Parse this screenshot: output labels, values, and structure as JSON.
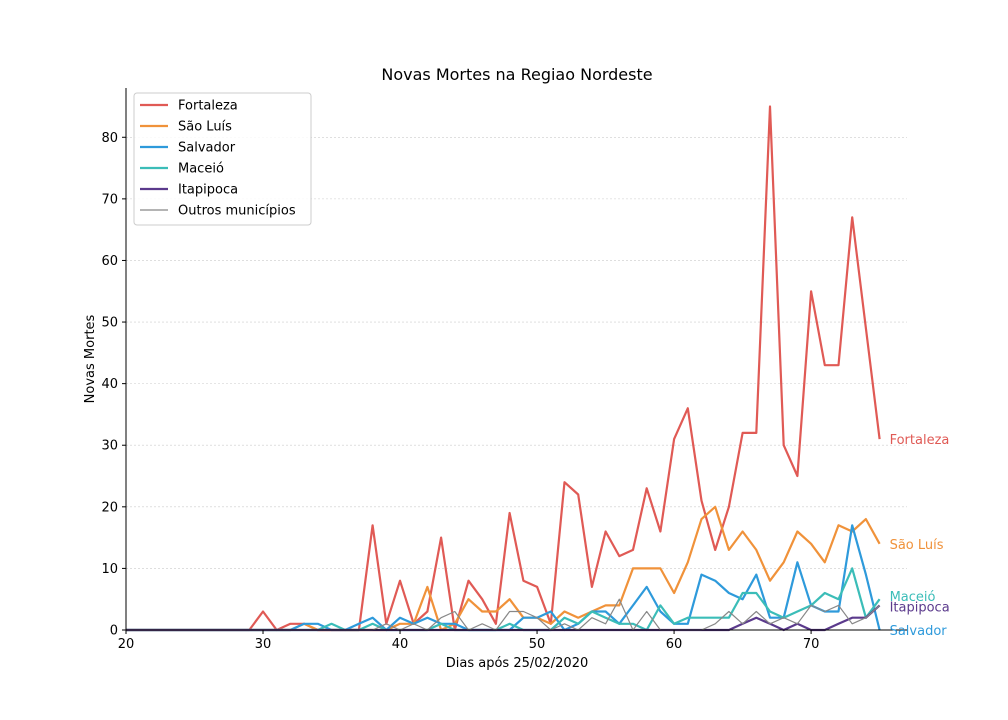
{
  "chart_data": {
    "type": "line",
    "title": "Novas Mortes na Regiao Nordeste",
    "xlabel": "Dias após 25/02/2020",
    "ylabel": "Novas Mortes",
    "xlim": [
      20,
      77
    ],
    "ylim": [
      0,
      88
    ],
    "xticks": [
      20,
      30,
      40,
      50,
      60,
      70
    ],
    "yticks": [
      0,
      10,
      20,
      30,
      40,
      50,
      60,
      70,
      80
    ],
    "grid": "horizontal-dashed",
    "legend_position": "top-left",
    "series": [
      {
        "name": "Fortaleza",
        "color": "#e05a55",
        "x": [
          20,
          21,
          22,
          23,
          24,
          25,
          26,
          27,
          28,
          29,
          30,
          31,
          32,
          33,
          34,
          35,
          36,
          37,
          38,
          39,
          40,
          41,
          42,
          43,
          44,
          45,
          46,
          47,
          48,
          49,
          50,
          51,
          52,
          53,
          54,
          55,
          56,
          57,
          58,
          59,
          60,
          61,
          62,
          63,
          64,
          65,
          66,
          67,
          68,
          69,
          70,
          71,
          72,
          73,
          74,
          75
        ],
        "y": [
          0,
          0,
          0,
          0,
          0,
          0,
          0,
          0,
          0,
          0,
          3,
          0,
          1,
          1,
          0,
          0,
          0,
          0,
          17,
          1,
          8,
          1,
          3,
          15,
          0,
          8,
          5,
          1,
          19,
          8,
          7,
          1,
          24,
          22,
          7,
          16,
          12,
          13,
          23,
          16,
          31,
          36,
          21,
          13,
          20,
          32,
          32,
          85,
          30,
          25,
          55,
          43,
          43,
          67,
          49,
          31
        ]
      },
      {
        "name": "São Luís",
        "color": "#f0923a",
        "x": [
          20,
          21,
          22,
          23,
          24,
          25,
          26,
          27,
          28,
          29,
          30,
          31,
          32,
          33,
          34,
          35,
          36,
          37,
          38,
          39,
          40,
          41,
          42,
          43,
          44,
          45,
          46,
          47,
          48,
          49,
          50,
          51,
          52,
          53,
          54,
          55,
          56,
          57,
          58,
          59,
          60,
          61,
          62,
          63,
          64,
          65,
          66,
          67,
          68,
          69,
          70,
          71,
          72,
          73,
          74,
          75
        ],
        "y": [
          0,
          0,
          0,
          0,
          0,
          0,
          0,
          0,
          0,
          0,
          0,
          0,
          0,
          1,
          0,
          0,
          0,
          0,
          0,
          0,
          1,
          1,
          7,
          0,
          1,
          5,
          3,
          3,
          5,
          2,
          2,
          1,
          3,
          2,
          3,
          4,
          4,
          10,
          10,
          10,
          6,
          11,
          18,
          20,
          13,
          16,
          13,
          8,
          11,
          16,
          14,
          11,
          17,
          16,
          18,
          14
        ]
      },
      {
        "name": "Salvador",
        "color": "#2e9adb",
        "x": [
          20,
          21,
          22,
          23,
          24,
          25,
          26,
          27,
          28,
          29,
          30,
          31,
          32,
          33,
          34,
          35,
          36,
          37,
          38,
          39,
          40,
          41,
          42,
          43,
          44,
          45,
          46,
          47,
          48,
          49,
          50,
          51,
          52,
          53,
          54,
          55,
          56,
          57,
          58,
          59,
          60,
          61,
          62,
          63,
          64,
          65,
          66,
          67,
          68,
          69,
          70,
          71,
          72,
          73,
          74,
          75
        ],
        "y": [
          0,
          0,
          0,
          0,
          0,
          0,
          0,
          0,
          0,
          0,
          0,
          0,
          0,
          1,
          1,
          0,
          0,
          1,
          2,
          0,
          2,
          1,
          2,
          1,
          1,
          0,
          0,
          0,
          0,
          2,
          2,
          3,
          0,
          1,
          3,
          3,
          1,
          4,
          7,
          3,
          1,
          1,
          9,
          8,
          6,
          5,
          9,
          2,
          2,
          11,
          4,
          3,
          3,
          17,
          9,
          0
        ]
      },
      {
        "name": "Maceió",
        "color": "#3bbdb8",
        "x": [
          20,
          21,
          22,
          23,
          24,
          25,
          26,
          27,
          28,
          29,
          30,
          31,
          32,
          33,
          34,
          35,
          36,
          37,
          38,
          39,
          40,
          41,
          42,
          43,
          44,
          45,
          46,
          47,
          48,
          49,
          50,
          51,
          52,
          53,
          54,
          55,
          56,
          57,
          58,
          59,
          60,
          61,
          62,
          63,
          64,
          65,
          66,
          67,
          68,
          69,
          70,
          71,
          72,
          73,
          74,
          75
        ],
        "y": [
          0,
          0,
          0,
          0,
          0,
          0,
          0,
          0,
          0,
          0,
          0,
          0,
          0,
          0,
          0,
          1,
          0,
          0,
          1,
          0,
          0,
          0,
          0,
          1,
          0,
          0,
          0,
          0,
          1,
          0,
          0,
          0,
          2,
          1,
          3,
          2,
          1,
          1,
          0,
          4,
          1,
          2,
          2,
          2,
          2,
          6,
          6,
          3,
          2,
          3,
          4,
          6,
          5,
          10,
          2,
          5
        ]
      },
      {
        "name": "Itapipoca",
        "color": "#5b3a8c",
        "x": [
          20,
          21,
          22,
          23,
          24,
          25,
          26,
          27,
          28,
          29,
          30,
          31,
          32,
          33,
          34,
          35,
          36,
          37,
          38,
          39,
          40,
          41,
          42,
          43,
          44,
          45,
          46,
          47,
          48,
          49,
          50,
          51,
          52,
          53,
          54,
          55,
          56,
          57,
          58,
          59,
          60,
          61,
          62,
          63,
          64,
          65,
          66,
          67,
          68,
          69,
          70,
          71,
          72,
          73,
          74,
          75
        ],
        "y": [
          0,
          0,
          0,
          0,
          0,
          0,
          0,
          0,
          0,
          0,
          0,
          0,
          0,
          0,
          0,
          0,
          0,
          0,
          0,
          0,
          0,
          0,
          0,
          0,
          0,
          0,
          0,
          0,
          0,
          0,
          0,
          0,
          0,
          0,
          0,
          0,
          0,
          0,
          0,
          0,
          0,
          0,
          0,
          0,
          0,
          1,
          2,
          1,
          0,
          1,
          0,
          0,
          1,
          2,
          2,
          4
        ]
      },
      {
        "name": "Outros municípios",
        "color": "#888888",
        "thin": true,
        "x": [
          20,
          21,
          22,
          23,
          24,
          25,
          26,
          27,
          28,
          29,
          30,
          31,
          32,
          33,
          34,
          35,
          36,
          37,
          38,
          39,
          40,
          41,
          42,
          43,
          44,
          45,
          46,
          47,
          48,
          49,
          50,
          51,
          52,
          53,
          54,
          55,
          56,
          57,
          58,
          59,
          60,
          61,
          62,
          63,
          64,
          65,
          66,
          67,
          68,
          69,
          70,
          71,
          72,
          73,
          74,
          75
        ],
        "y": [
          0,
          0,
          0,
          0,
          0,
          0,
          0,
          0,
          0,
          0,
          0,
          0,
          0,
          0,
          0,
          0,
          0,
          0,
          0,
          1,
          0,
          1,
          0,
          2,
          3,
          0,
          1,
          0,
          3,
          3,
          2,
          0,
          1,
          0,
          2,
          1,
          5,
          0,
          3,
          0,
          0,
          0,
          0,
          1,
          3,
          1,
          3,
          1,
          2,
          1,
          4,
          3,
          4,
          1,
          2,
          4
        ]
      }
    ],
    "end_labels": [
      {
        "text": "Fortaleza",
        "color": "#e05a55",
        "y": 31
      },
      {
        "text": "São Luís",
        "color": "#f0923a",
        "y": 14
      },
      {
        "text": "Maceió",
        "color": "#3bbdb8",
        "y": 5
      },
      {
        "text": "Itapipoca",
        "color": "#5b3a8c",
        "y": 4
      },
      {
        "text": "Salvador",
        "color": "#2e9adb",
        "y": 0
      }
    ]
  }
}
